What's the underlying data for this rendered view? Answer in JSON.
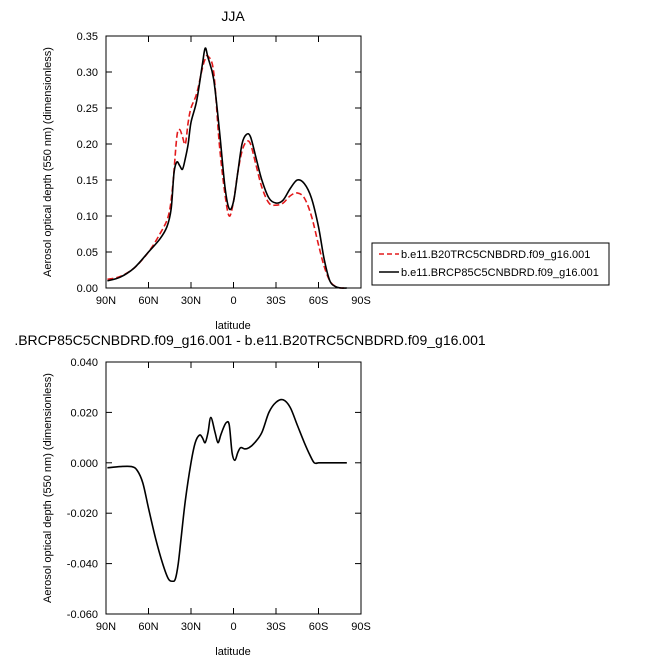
{
  "chart_data": [
    {
      "type": "line",
      "title": "JJA",
      "xlabel": "latitude",
      "ylabel": "Aerosol optical depth (550 nm) (dimensionless)",
      "xlim": [
        90,
        -90
      ],
      "ylim": [
        0,
        0.35
      ],
      "x_ticks": [
        90,
        60,
        30,
        0,
        -30,
        -60,
        -90
      ],
      "x_tick_labels": [
        "90N",
        "60N",
        "30N",
        "0",
        "30S",
        "60S",
        "90S"
      ],
      "y_ticks": [
        0,
        0.05,
        0.1,
        0.15,
        0.2,
        0.25,
        0.3,
        0.35
      ],
      "y_tick_labels": [
        "0.00",
        "0.05",
        "0.10",
        "0.15",
        "0.20",
        "0.25",
        "0.30",
        "0.35"
      ],
      "legend_position": "right",
      "series": [
        {
          "name": "b.e11.B20TRC5CNBDRD.f09_g16.001",
          "color": "#e31a1c",
          "dash": "dashed",
          "x": [
            89,
            80,
            70,
            60,
            52,
            46,
            43,
            40,
            38,
            36,
            34,
            32,
            30,
            26,
            22,
            20,
            18,
            14,
            10,
            6,
            3,
            0,
            -3,
            -6,
            -9,
            -12,
            -16,
            -20,
            -25,
            -30,
            -35,
            -40,
            -45,
            -50,
            -55,
            -60,
            -64,
            -68,
            -72,
            -76,
            -80
          ],
          "y": [
            0.012,
            0.016,
            0.028,
            0.05,
            0.075,
            0.1,
            0.14,
            0.21,
            0.22,
            0.21,
            0.2,
            0.23,
            0.25,
            0.27,
            0.305,
            0.318,
            0.322,
            0.3,
            0.2,
            0.13,
            0.1,
            0.12,
            0.16,
            0.19,
            0.203,
            0.2,
            0.17,
            0.14,
            0.118,
            0.115,
            0.118,
            0.128,
            0.132,
            0.125,
            0.1,
            0.06,
            0.03,
            0.01,
            0.002,
            0.0,
            0.0
          ]
        },
        {
          "name": "b.e11.BRCP85C5CNBDRD.f09_g16.001",
          "color": "#000000",
          "dash": "solid",
          "x": [
            89,
            80,
            70,
            60,
            52,
            47,
            44,
            42,
            40,
            38,
            36,
            34,
            32,
            30,
            26,
            22,
            20,
            18,
            14,
            10,
            6,
            3,
            0,
            -3,
            -6,
            -9,
            -12,
            -16,
            -20,
            -25,
            -30,
            -35,
            -40,
            -45,
            -50,
            -55,
            -60,
            -64,
            -68,
            -72,
            -76,
            -80
          ],
          "y": [
            0.01,
            0.015,
            0.028,
            0.05,
            0.068,
            0.085,
            0.11,
            0.16,
            0.175,
            0.17,
            0.165,
            0.18,
            0.2,
            0.23,
            0.26,
            0.31,
            0.333,
            0.32,
            0.29,
            0.22,
            0.14,
            0.11,
            0.12,
            0.16,
            0.2,
            0.213,
            0.21,
            0.18,
            0.15,
            0.125,
            0.118,
            0.122,
            0.138,
            0.15,
            0.145,
            0.125,
            0.085,
            0.04,
            0.01,
            0.002,
            0.0,
            0.0
          ]
        }
      ]
    },
    {
      "type": "line",
      "title": ".BRCP85C5CNBDRD.f09_g16.001 - b.e11.B20TRC5CNBDRD.f09_g16.001",
      "xlabel": "latitude",
      "ylabel": "Aerosol optical depth (550 nm) (dimensionless)",
      "xlim": [
        90,
        -90
      ],
      "ylim": [
        -0.06,
        0.04
      ],
      "x_ticks": [
        90,
        60,
        30,
        0,
        -30,
        -60,
        -90
      ],
      "x_tick_labels": [
        "90N",
        "60N",
        "30N",
        "0",
        "30S",
        "60S",
        "90S"
      ],
      "y_ticks": [
        -0.06,
        -0.04,
        -0.02,
        0.0,
        0.02,
        0.04
      ],
      "y_tick_labels": [
        "-0.060",
        "-0.040",
        "-0.020",
        "0.000",
        "0.020",
        "0.040"
      ],
      "series": [
        {
          "color": "#000000",
          "dash": "solid",
          "x": [
            89,
            80,
            72,
            68,
            64,
            60,
            55,
            50,
            46,
            43,
            41,
            39,
            37,
            34,
            30,
            27,
            24,
            22,
            20,
            18,
            16,
            13,
            11,
            9,
            7,
            5,
            3,
            1,
            -1,
            -3,
            -5,
            -8,
            -11,
            -15,
            -20,
            -25,
            -30,
            -35,
            -40,
            -45,
            -50,
            -54,
            -57,
            -60,
            -62,
            -65,
            -68,
            -72,
            -76,
            -80
          ],
          "y": [
            -0.002,
            -0.0015,
            -0.0015,
            -0.003,
            -0.008,
            -0.018,
            -0.03,
            -0.04,
            -0.046,
            -0.047,
            -0.046,
            -0.04,
            -0.03,
            -0.015,
            0.0,
            0.008,
            0.011,
            0.01,
            0.008,
            0.012,
            0.018,
            0.012,
            0.008,
            0.011,
            0.014,
            0.016,
            0.015,
            0.004,
            0.001,
            0.004,
            0.006,
            0.0055,
            0.006,
            0.008,
            0.012,
            0.02,
            0.024,
            0.025,
            0.022,
            0.015,
            0.008,
            0.003,
            0.0,
            0.0,
            0.0,
            0.0,
            0.0,
            0.0,
            0.0,
            0.0
          ]
        }
      ]
    }
  ]
}
